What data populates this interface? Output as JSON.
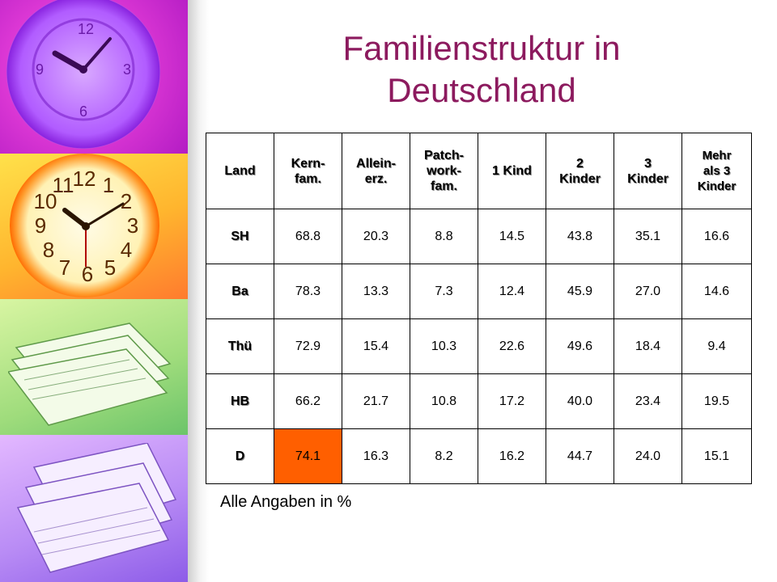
{
  "title": {
    "line1": "Familienstruktur in",
    "line2": "Deutschland"
  },
  "colors": {
    "title": "#8c1a5e",
    "highlight_cell": "#ff5f00"
  },
  "decor": {
    "left_strip": [
      "clock-magenta",
      "clock-orange",
      "papers-green",
      "papers-purple"
    ],
    "clock_numerals": [
      "12",
      "1",
      "2",
      "3",
      "4",
      "5",
      "6",
      "7",
      "8",
      "9",
      "10",
      "11"
    ]
  },
  "table": {
    "headers": [
      "Land",
      "Kern-\nfam.",
      "Allein-\nerz.",
      "Patch-\nwork-\nfam.",
      "1 Kind",
      "2\nKinder",
      "3\nKinder",
      "Mehr\nals 3\nKinder"
    ],
    "rows": [
      {
        "land": "SH",
        "values": [
          "68.8",
          "20.3",
          "8.8",
          "14.5",
          "43.8",
          "35.1",
          "16.6"
        ]
      },
      {
        "land": "Ba",
        "values": [
          "78.3",
          "13.3",
          "7.3",
          "12.4",
          "45.9",
          "27.0",
          "14.6"
        ]
      },
      {
        "land": "Thü",
        "values": [
          "72.9",
          "15.4",
          "10.3",
          "22.6",
          "49.6",
          "18.4",
          "9.4"
        ]
      },
      {
        "land": "HB",
        "values": [
          "66.2",
          "21.7",
          "10.8",
          "17.2",
          "40.0",
          "23.4",
          "19.5"
        ]
      },
      {
        "land": "D",
        "values": [
          "74.1",
          "16.3",
          "8.2",
          "16.2",
          "44.7",
          "24.0",
          "15.1"
        ]
      }
    ],
    "highlighted_cell": {
      "row": 4,
      "col": 0
    }
  },
  "note": "Alle Angaben in %"
}
